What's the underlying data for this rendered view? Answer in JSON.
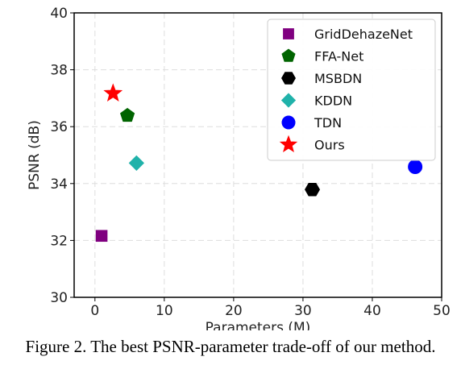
{
  "caption": "Figure 2. The best PSNR-parameter trade-off of our method.",
  "chart_data": {
    "type": "scatter",
    "title": "",
    "xlabel": "Parameters (M)",
    "ylabel": "PSNR (dB)",
    "xlim": [
      -3,
      50
    ],
    "ylim": [
      30,
      40
    ],
    "xticks": [
      0,
      10,
      20,
      30,
      40,
      50
    ],
    "yticks": [
      30,
      32,
      34,
      36,
      38,
      40
    ],
    "grid": true,
    "legend_position": "top-right",
    "series": [
      {
        "name": "GridDehazeNet",
        "marker": "square",
        "color": "#800080",
        "x": 0.96,
        "y": 32.16
      },
      {
        "name": "FFA-Net",
        "marker": "pentagon",
        "color": "#006400",
        "x": 4.68,
        "y": 36.39
      },
      {
        "name": "MSBDN",
        "marker": "hexagon",
        "color": "#000000",
        "x": 31.35,
        "y": 33.79
      },
      {
        "name": "KDDN",
        "marker": "diamond",
        "color": "#20b2aa",
        "x": 5.99,
        "y": 34.72
      },
      {
        "name": "TDN",
        "marker": "circle",
        "color": "#0000ff",
        "x": 46.18,
        "y": 34.59
      },
      {
        "name": "Ours",
        "marker": "star",
        "color": "#ff0000",
        "x": 2.61,
        "y": 37.17
      }
    ]
  }
}
